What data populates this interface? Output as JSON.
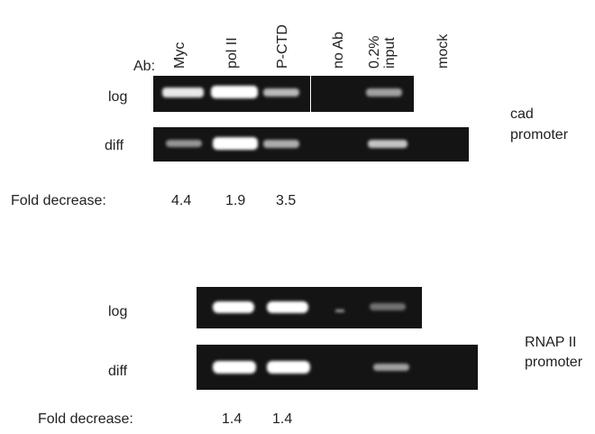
{
  "ab_label": "Ab:",
  "columns": [
    [
      "Myc"
    ],
    [
      "pol II"
    ],
    [
      "P-CTD"
    ],
    [
      "no Ab"
    ],
    [
      "0.2%",
      "input"
    ],
    [
      "mock"
    ]
  ],
  "panels": [
    {
      "name": [
        "cad",
        "promoter"
      ],
      "rows": [
        "log",
        "diff"
      ],
      "fold_label": "Fold decrease:",
      "fold_values": [
        4.4,
        1.9,
        3.5
      ]
    },
    {
      "name": [
        "RNAP II",
        "promoter"
      ],
      "rows": [
        "log",
        "diff"
      ],
      "fold_label": "Fold decrease:",
      "fold_values": [
        1.4,
        1.4
      ]
    }
  ]
}
